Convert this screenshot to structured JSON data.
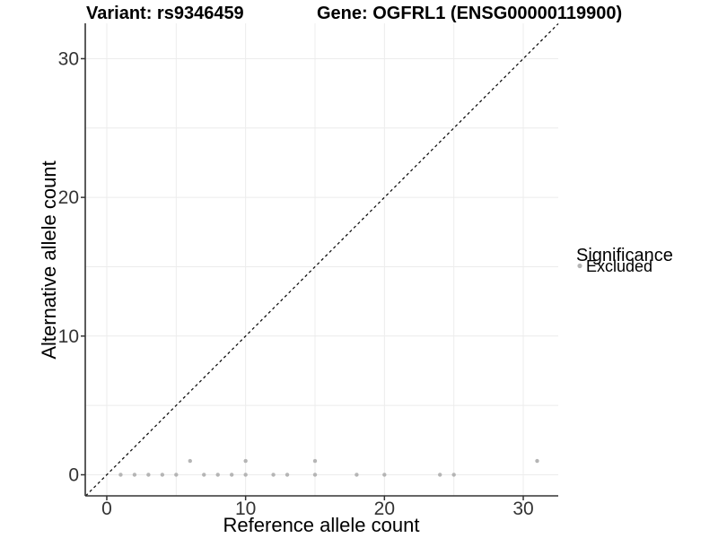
{
  "chart_data": {
    "type": "scatter",
    "title_left": "Variant: rs9346459",
    "title_right": "Gene: OGFRL1 (ENSG00000119900)",
    "xlabel": "Reference allele count",
    "ylabel": "Alternative allele count",
    "xlim": [
      -1.55,
      32.52
    ],
    "ylim": [
      -1.52,
      32.55
    ],
    "xticks": [
      0,
      10,
      20,
      30
    ],
    "yticks": [
      0,
      10,
      20,
      30
    ],
    "x_minor_ticks": [
      5,
      15,
      25
    ],
    "y_minor_ticks": [
      5,
      15,
      25
    ],
    "grid": "on",
    "legend_position": "right",
    "identity_line": {
      "slope": 1,
      "intercept": 0,
      "style": "dashed",
      "color": "#111111"
    },
    "series": [
      {
        "name": "Excluded",
        "color": "#b5b5b5",
        "points": [
          [
            1,
            0
          ],
          [
            2,
            0
          ],
          [
            3,
            0
          ],
          [
            4,
            0
          ],
          [
            5,
            0
          ],
          [
            6,
            1
          ],
          [
            7,
            0
          ],
          [
            8,
            0
          ],
          [
            9,
            0
          ],
          [
            10,
            0
          ],
          [
            10,
            1
          ],
          [
            12,
            0
          ],
          [
            13,
            0
          ],
          [
            15,
            0
          ],
          [
            15,
            1
          ],
          [
            18,
            0
          ],
          [
            20,
            0
          ],
          [
            24,
            0
          ],
          [
            25,
            0
          ],
          [
            31,
            1
          ]
        ]
      }
    ],
    "legend": {
      "title": "Significance",
      "items": [
        {
          "label": "Excluded",
          "color": "#b5b5b5"
        }
      ]
    }
  },
  "style_colors": {
    "grid": "#ececec",
    "axis_line": "#333333",
    "tick_mark": "#333333",
    "tick_label": "#333333",
    "point": "#b5b5b5",
    "dashed_line": "#111111"
  }
}
